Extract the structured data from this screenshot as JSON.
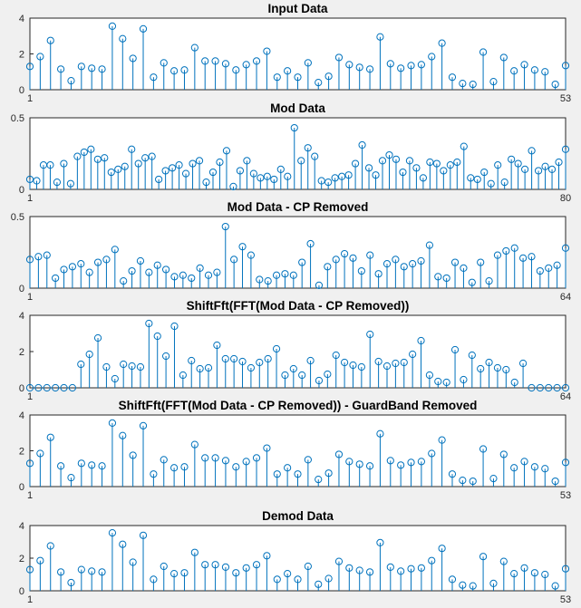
{
  "colors": {
    "series": "#0072bd",
    "axes": "#262626",
    "figure_bg": "#f0f0f0",
    "plot_bg": "#ffffff"
  },
  "chart_data": [
    {
      "type": "stem",
      "title": "Input Data",
      "xlim": [
        1,
        53
      ],
      "ylim": [
        0,
        4
      ],
      "yticks": [
        "0",
        "2",
        "4"
      ],
      "xticks": [
        "1",
        "53"
      ],
      "x_start": 1,
      "values": [
        1.3,
        1.85,
        2.75,
        1.15,
        0.5,
        1.3,
        1.2,
        1.15,
        3.55,
        2.85,
        1.75,
        3.4,
        0.7,
        1.5,
        1.05,
        1.1,
        2.35,
        1.6,
        1.6,
        1.45,
        1.1,
        1.4,
        1.6,
        2.15,
        0.7,
        1.05,
        0.7,
        1.5,
        0.4,
        0.75,
        1.8,
        1.4,
        1.25,
        1.15,
        2.95,
        1.45,
        1.2,
        1.35,
        1.4,
        1.85,
        2.6,
        0.7,
        0.35,
        0.3,
        2.1,
        0.45,
        1.8,
        1.05,
        1.4,
        1.1,
        1.0,
        0.3,
        1.35
      ]
    },
    {
      "type": "stem",
      "title": "Mod Data",
      "xlim": [
        1,
        80
      ],
      "ylim": [
        0,
        0.5
      ],
      "yticks": [
        "0",
        "0.5"
      ],
      "xticks": [
        "1",
        "80"
      ],
      "x_start": 1,
      "values": [
        0.07,
        0.06,
        0.17,
        0.17,
        0.05,
        0.18,
        0.04,
        0.23,
        0.26,
        0.28,
        0.21,
        0.22,
        0.12,
        0.14,
        0.16,
        0.28,
        0.18,
        0.22,
        0.23,
        0.07,
        0.13,
        0.15,
        0.17,
        0.11,
        0.18,
        0.2,
        0.05,
        0.12,
        0.19,
        0.27,
        0.02,
        0.13,
        0.2,
        0.11,
        0.08,
        0.09,
        0.07,
        0.14,
        0.09,
        0.43,
        0.2,
        0.29,
        0.23,
        0.06,
        0.05,
        0.08,
        0.09,
        0.1,
        0.18,
        0.31,
        0.15,
        0.1,
        0.2,
        0.24,
        0.21,
        0.12,
        0.2,
        0.15,
        0.08,
        0.19,
        0.18,
        0.13,
        0.17,
        0.19,
        0.3,
        0.08,
        0.07,
        0.12,
        0.04,
        0.17,
        0.05,
        0.21,
        0.18,
        0.14,
        0.27,
        0.13,
        0.16,
        0.14,
        0.19,
        0.28
      ]
    },
    {
      "type": "stem",
      "title": "Mod Data - CP Removed",
      "xlim": [
        1,
        64
      ],
      "ylim": [
        0,
        0.5
      ],
      "yticks": [
        "0",
        "0.5"
      ],
      "xticks": [
        "1",
        "64"
      ],
      "x_start": 1,
      "values": [
        0.2,
        0.22,
        0.23,
        0.07,
        0.13,
        0.15,
        0.17,
        0.11,
        0.18,
        0.2,
        0.27,
        0.05,
        0.12,
        0.19,
        0.11,
        0.16,
        0.13,
        0.08,
        0.09,
        0.07,
        0.14,
        0.09,
        0.11,
        0.43,
        0.2,
        0.29,
        0.23,
        0.06,
        0.05,
        0.09,
        0.1,
        0.09,
        0.18,
        0.31,
        0.02,
        0.15,
        0.2,
        0.24,
        0.21,
        0.12,
        0.23,
        0.1,
        0.17,
        0.2,
        0.15,
        0.17,
        0.19,
        0.3,
        0.08,
        0.07,
        0.18,
        0.14,
        0.04,
        0.18,
        0.05,
        0.23,
        0.26,
        0.28,
        0.21,
        0.22,
        0.12,
        0.14,
        0.16,
        0.28
      ]
    },
    {
      "type": "stem",
      "title": "ShiftFft(FFT(Mod Data - CP Removed))",
      "xlim": [
        1,
        64
      ],
      "ylim": [
        0,
        4
      ],
      "yticks": [
        "0",
        "2",
        "4"
      ],
      "xticks": [
        "1",
        "64"
      ],
      "x_start": 1,
      "values": [
        0,
        0,
        0,
        0,
        0,
        0,
        1.3,
        1.85,
        2.75,
        1.15,
        0.5,
        1.3,
        1.2,
        1.15,
        3.55,
        2.85,
        1.75,
        3.4,
        0.7,
        1.5,
        1.05,
        1.1,
        2.35,
        1.6,
        1.6,
        1.45,
        1.1,
        1.4,
        1.6,
        2.15,
        0.7,
        1.05,
        0.7,
        1.5,
        0.4,
        0.75,
        1.8,
        1.4,
        1.25,
        1.15,
        2.95,
        1.45,
        1.2,
        1.35,
        1.4,
        1.85,
        2.6,
        0.7,
        0.35,
        0.3,
        2.1,
        0.45,
        1.8,
        1.05,
        1.4,
        1.1,
        1.0,
        0.3,
        1.35,
        0,
        0,
        0,
        0,
        0
      ]
    },
    {
      "type": "stem",
      "title": "ShiftFft(FFT(Mod Data - CP Removed)) - GuardBand Removed",
      "xlim": [
        1,
        53
      ],
      "ylim": [
        0,
        4
      ],
      "yticks": [
        "0",
        "2",
        "4"
      ],
      "xticks": [
        "1",
        "53"
      ],
      "x_start": 1,
      "values": [
        1.3,
        1.85,
        2.75,
        1.15,
        0.5,
        1.3,
        1.2,
        1.15,
        3.55,
        2.85,
        1.75,
        3.4,
        0.7,
        1.5,
        1.05,
        1.1,
        2.35,
        1.6,
        1.6,
        1.45,
        1.1,
        1.4,
        1.6,
        2.15,
        0.7,
        1.05,
        0.7,
        1.5,
        0.4,
        0.75,
        1.8,
        1.4,
        1.25,
        1.15,
        2.95,
        1.45,
        1.2,
        1.35,
        1.4,
        1.85,
        2.6,
        0.7,
        0.35,
        0.3,
        2.1,
        0.45,
        1.8,
        1.05,
        1.4,
        1.1,
        1.0,
        0.3,
        1.35
      ]
    },
    {
      "type": "stem",
      "title": "Demod Data",
      "xlim": [
        1,
        53
      ],
      "ylim": [
        0,
        4
      ],
      "yticks": [
        "0",
        "2",
        "4"
      ],
      "xticks": [
        "1",
        "53"
      ],
      "x_start": 1,
      "values": [
        1.3,
        1.85,
        2.75,
        1.15,
        0.5,
        1.3,
        1.2,
        1.15,
        3.55,
        2.85,
        1.75,
        3.4,
        0.7,
        1.5,
        1.05,
        1.1,
        2.35,
        1.6,
        1.6,
        1.45,
        1.1,
        1.4,
        1.6,
        2.15,
        0.7,
        1.05,
        0.7,
        1.5,
        0.4,
        0.75,
        1.8,
        1.4,
        1.25,
        1.15,
        2.95,
        1.45,
        1.2,
        1.35,
        1.4,
        1.85,
        2.6,
        0.7,
        0.35,
        0.3,
        2.1,
        0.45,
        1.8,
        1.05,
        1.4,
        1.1,
        1.0,
        0.3,
        1.35
      ]
    }
  ]
}
